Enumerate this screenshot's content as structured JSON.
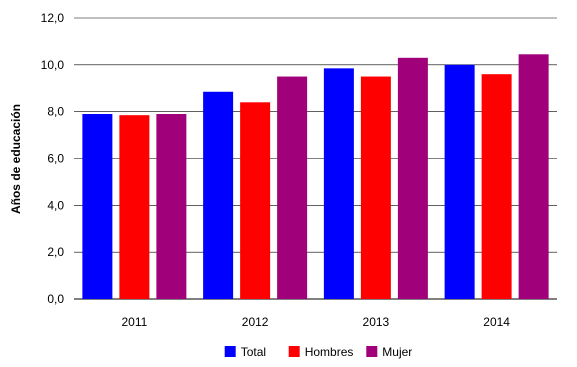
{
  "chart_data": {
    "type": "bar",
    "categories": [
      "2011",
      "2012",
      "2013",
      "2014"
    ],
    "series": [
      {
        "name": "Total",
        "color": "#0000ff",
        "values": [
          7.9,
          8.85,
          9.85,
          10.0
        ]
      },
      {
        "name": "Hombres",
        "color": "#ff0000",
        "values": [
          7.85,
          8.4,
          9.5,
          9.6
        ]
      },
      {
        "name": "Mujer",
        "color": "#a0007a",
        "values": [
          7.9,
          9.5,
          10.3,
          10.45
        ]
      }
    ],
    "title": "",
    "xlabel": "",
    "ylabel": "Años de educación",
    "ylim": [
      0,
      12
    ],
    "yticks": [
      "0,0",
      "2,0",
      "4,0",
      "6,0",
      "8,0",
      "10,0",
      "12,0"
    ],
    "grid": true,
    "legend_position": "bottom"
  }
}
